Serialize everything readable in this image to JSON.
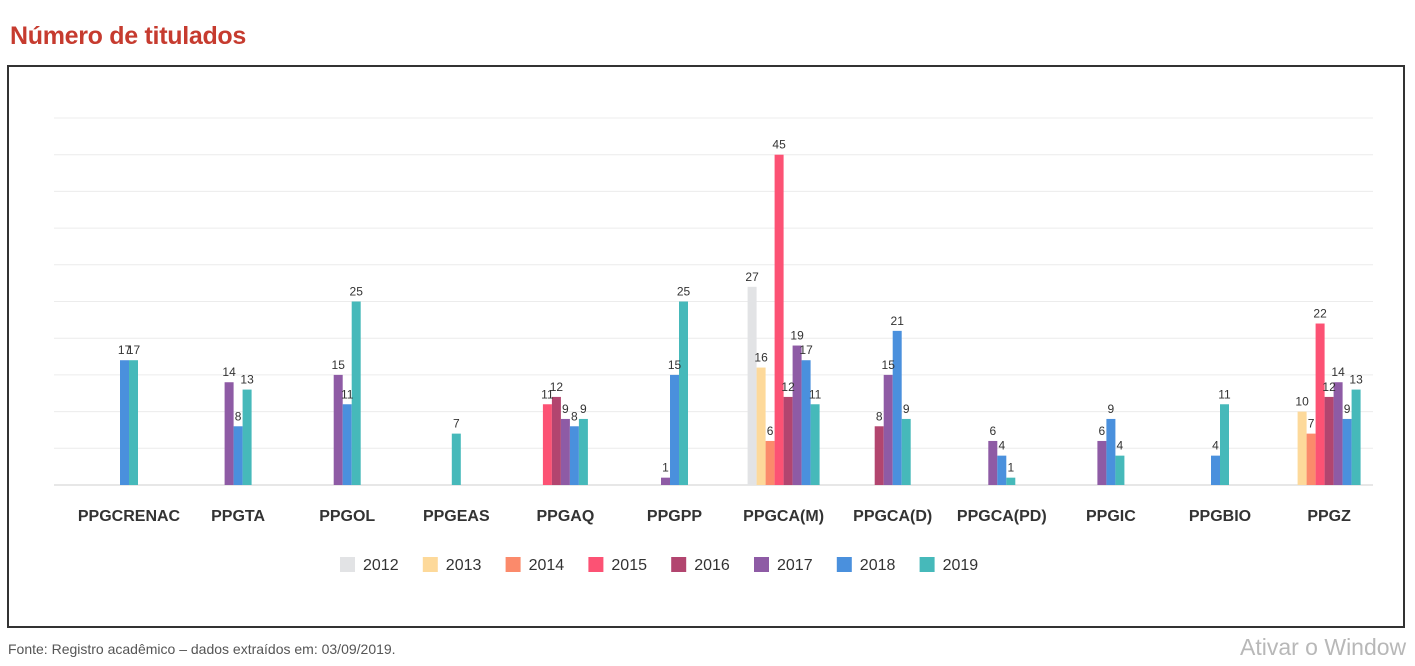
{
  "page": {
    "title": "Número de titulados",
    "source": "Fonte: Registro acadêmico – dados extraídos em: 03/09/2019.",
    "watermark": "Ativar o Window"
  },
  "chart_data": {
    "type": "bar",
    "title": "",
    "xlabel": "",
    "ylabel": "",
    "ylim": [
      0,
      50
    ],
    "grid": true,
    "legend_position": "bottom",
    "categories": [
      "PPGCRENAC",
      "PPGTA",
      "PPGOL",
      "PPGEAS",
      "PPGAQ",
      "PPGPP",
      "PPGCA(M)",
      "PPGCA(D)",
      "PPGCA(PD)",
      "PPGIC",
      "PPGBIO",
      "PPGZ"
    ],
    "series": [
      {
        "name": "2012",
        "color": "#e2e3e5",
        "values": [
          null,
          null,
          null,
          null,
          null,
          null,
          27,
          null,
          null,
          null,
          null,
          null
        ]
      },
      {
        "name": "2013",
        "color": "#fdd99a",
        "values": [
          null,
          null,
          null,
          null,
          null,
          null,
          16,
          null,
          null,
          null,
          null,
          10
        ]
      },
      {
        "name": "2014",
        "color": "#fb8a6b",
        "values": [
          null,
          null,
          null,
          null,
          null,
          null,
          6,
          null,
          null,
          null,
          null,
          7
        ]
      },
      {
        "name": "2015",
        "color": "#fc5274",
        "values": [
          null,
          null,
          null,
          null,
          11,
          null,
          45,
          null,
          null,
          null,
          null,
          22
        ]
      },
      {
        "name": "2016",
        "color": "#b2456f",
        "values": [
          null,
          null,
          null,
          null,
          12,
          null,
          12,
          8,
          null,
          null,
          null,
          12
        ]
      },
      {
        "name": "2017",
        "color": "#8e5ba5",
        "values": [
          null,
          14,
          15,
          null,
          9,
          1,
          19,
          15,
          6,
          6,
          null,
          14
        ]
      },
      {
        "name": "2018",
        "color": "#4a90dd",
        "values": [
          17,
          8,
          11,
          null,
          8,
          15,
          17,
          21,
          4,
          9,
          4,
          9
        ]
      },
      {
        "name": "2019",
        "color": "#46b9ba",
        "values": [
          17,
          13,
          25,
          7,
          9,
          25,
          11,
          9,
          1,
          4,
          11,
          13
        ]
      }
    ]
  }
}
